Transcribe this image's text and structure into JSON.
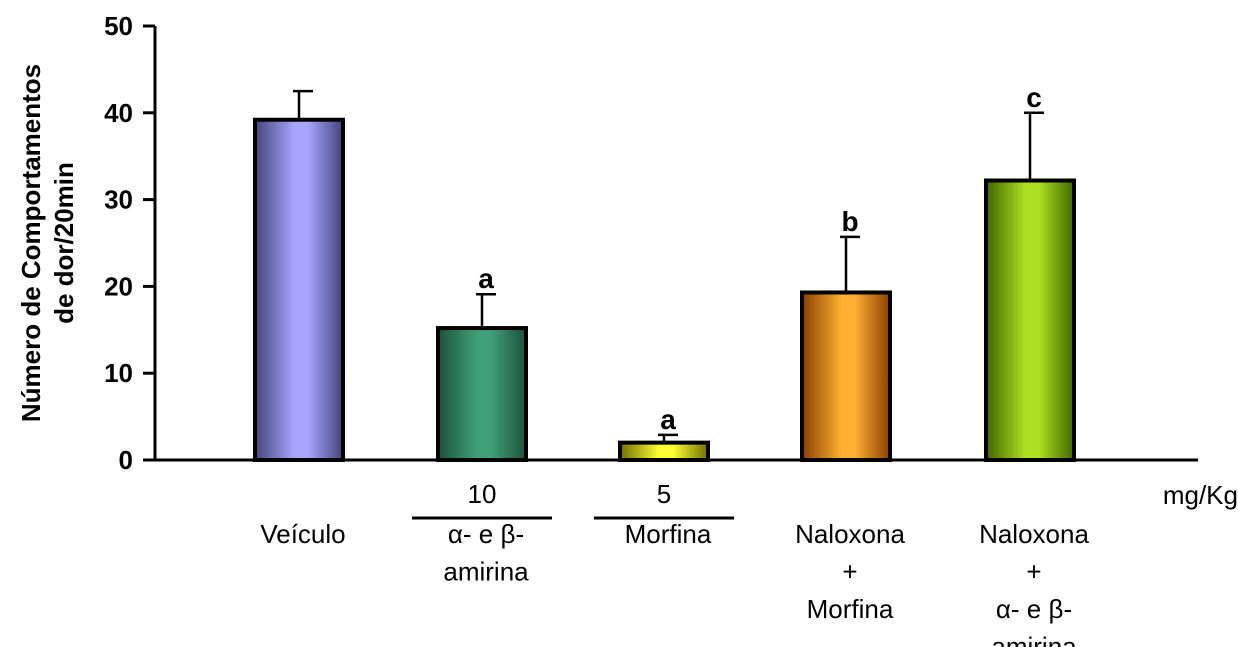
{
  "chart_data": {
    "type": "bar",
    "ylabel": [
      "Número de Comportamentos",
      "de dor/20min"
    ],
    "ylim": [
      0,
      50
    ],
    "yticks": [
      0,
      10,
      20,
      30,
      40,
      50
    ],
    "grid": false,
    "unit_label": "mg/Kg",
    "categories": [
      {
        "dose": "",
        "lines": [
          "Veículo"
        ],
        "value": 39.2,
        "error": 3.3,
        "sig": "",
        "color_light": "#a6a6ff",
        "color_dark": "#44447a",
        "dose_bar": false
      },
      {
        "dose": "10",
        "lines": [
          "α- e β-",
          "amirina"
        ],
        "value": 15.2,
        "error": 3.9,
        "sig": "a",
        "color_light": "#3fa07a",
        "color_dark": "#1c5238",
        "dose_bar": true
      },
      {
        "dose": "5",
        "lines": [
          "Morfina"
        ],
        "value": 2.0,
        "error": 0.9,
        "sig": "a",
        "color_light": "#ffff33",
        "color_dark": "#6f6f00",
        "dose_bar": true
      },
      {
        "dose": "",
        "lines": [
          "Naloxona",
          "+",
          "Morfina"
        ],
        "value": 19.3,
        "error": 6.4,
        "sig": "b",
        "color_light": "#ffb030",
        "color_dark": "#8a3e00",
        "dose_bar": false
      },
      {
        "dose": "",
        "lines": [
          "Naloxona",
          "+",
          "α- e β-",
          "amirina"
        ],
        "value": 32.2,
        "error": 7.8,
        "sig": "c",
        "color_light": "#aee020",
        "color_dark": "#3f6600",
        "dose_bar": false
      }
    ]
  }
}
